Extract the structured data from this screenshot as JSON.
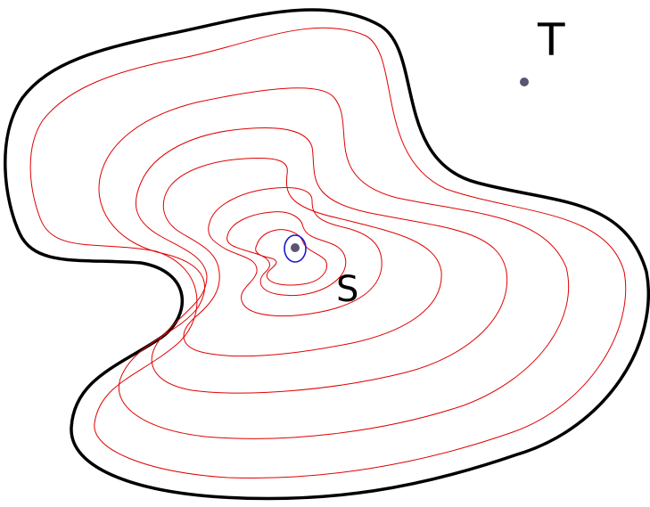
{
  "labels": {
    "target": "T",
    "source": "S"
  },
  "colors": {
    "outer_boundary": "#000000",
    "level_curves": "#e00000",
    "innermost_curve": "#1a1acc",
    "points": "#5a5470",
    "background": "#ffffff"
  },
  "level_curve_count": 7
}
